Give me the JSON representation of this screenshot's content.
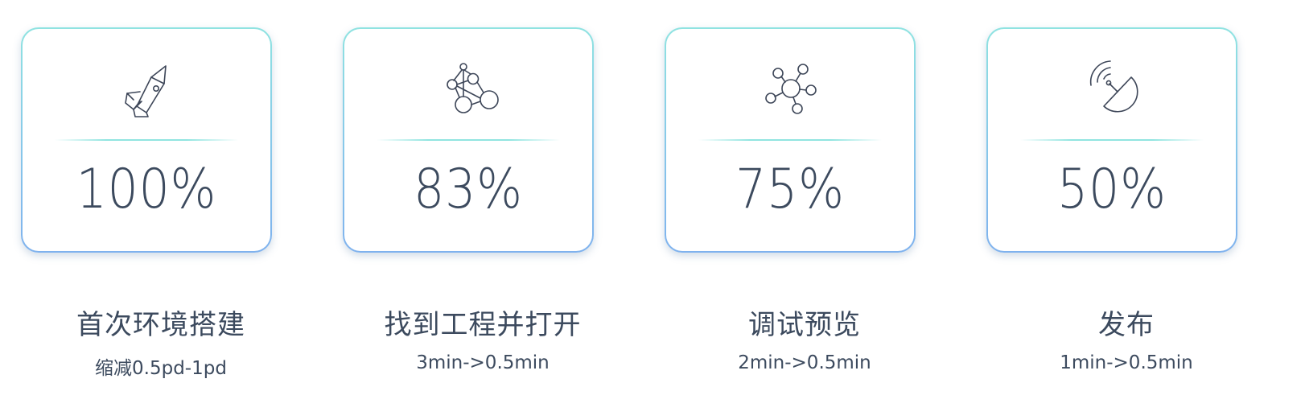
{
  "colors": {
    "text": "#3c4a5e",
    "card_border_top": "#8fe3e1",
    "card_border_bottom": "#7fb2ee",
    "divider": "#6cdcd6"
  },
  "cards": [
    {
      "icon": "rocket-icon",
      "percent": "100%",
      "value": 100,
      "title": "首次环境搭建",
      "subtitle": "缩减0.5pd-1pd"
    },
    {
      "icon": "molecule-network-icon",
      "percent": "83%",
      "value": 83,
      "title": "找到工程并打开",
      "subtitle": "3min->0.5min"
    },
    {
      "icon": "hub-nodes-icon",
      "percent": "75%",
      "value": 75,
      "title": "调试预览",
      "subtitle": "2min->0.5min"
    },
    {
      "icon": "satellite-dish-icon",
      "percent": "50%",
      "value": 50,
      "title": "发布",
      "subtitle": "1min->0.5min"
    }
  ]
}
